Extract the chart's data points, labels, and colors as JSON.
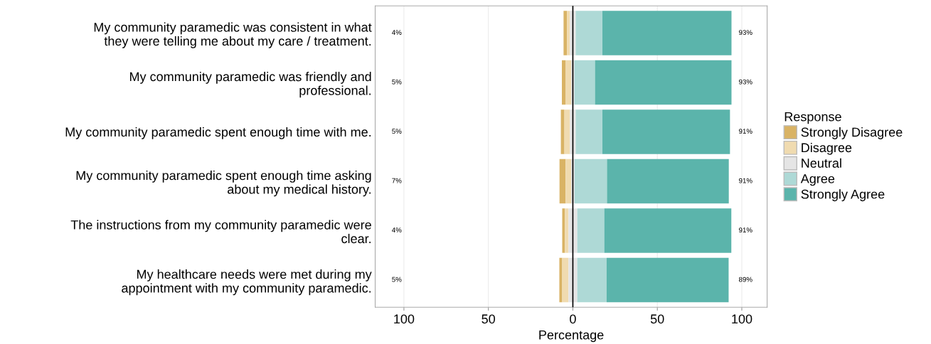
{
  "chart_data": {
    "type": "bar",
    "orientation": "horizontal",
    "xlabel": "Percentage",
    "legend_title": "Response",
    "legend": "right",
    "grid": "x",
    "categories": [
      "My community paramedic was consistent in what\nthey were telling me about my care / treatment.",
      "My community paramedic was friendly and\nprofessional.",
      "My community paramedic spent enough time with me.",
      "My community paramedic spent enough time asking\nabout my medical history.",
      "The instructions from my community paramedic were\nclear.",
      "My healthcare needs were met during my\nappointment with my community paramedic."
    ],
    "xlim": [
      -117,
      115
    ],
    "xticks": [
      {
        "value": -100,
        "label": "100"
      },
      {
        "value": -50,
        "label": "50"
      },
      0,
      50,
      100
    ],
    "ref_lines": [
      {
        "axis": "x",
        "value": 0,
        "color": "#000000"
      }
    ],
    "series": [
      {
        "name": "Strongly Disagree",
        "color": "#d9b365",
        "values": [
          2,
          2.1,
          2.1,
          3.6,
          1.6,
          1.7
        ],
        "base": [
          -5.5,
          -6.5,
          -7.1,
          -7.9,
          -6.3,
          -8
        ]
      },
      {
        "name": "Disagree",
        "color": "#f0dbb0",
        "values": [
          1.8,
          3.5,
          3.3,
          3.3,
          2.1,
          3.7
        ],
        "base": [
          -3.5,
          -4.4,
          -5.0,
          -4.3,
          -4.7,
          -6.3
        ]
      },
      {
        "name": "Neutral",
        "color": "#e5e5e5",
        "values": [
          3.4,
          1.8,
          3.4,
          2,
          5.2,
          5.2
        ],
        "base": [
          -1.7,
          -0.9,
          -1.7,
          -1,
          -2.6,
          -2.6
        ]
      },
      {
        "name": "Agree",
        "color": "#aed9d6",
        "values": [
          15.8,
          12.2,
          15.8,
          19.2,
          16,
          17.4
        ],
        "base": [
          1.7,
          0.9,
          1.7,
          1,
          2.6,
          2.6
        ]
      },
      {
        "name": "Strongly Agree",
        "color": "#5bb4ab",
        "values": [
          76.4,
          80.8,
          75.5,
          72.1,
          75.2,
          72.2
        ],
        "base": [
          17.5,
          13.1,
          17.5,
          20.2,
          18.6,
          20
        ]
      }
    ],
    "annotations": [
      "4%",
      "5%",
      "5%",
      "7%",
      "4%",
      "5%",
      "93%",
      "93%",
      "91%",
      "91%",
      "91%",
      "89%"
    ]
  }
}
